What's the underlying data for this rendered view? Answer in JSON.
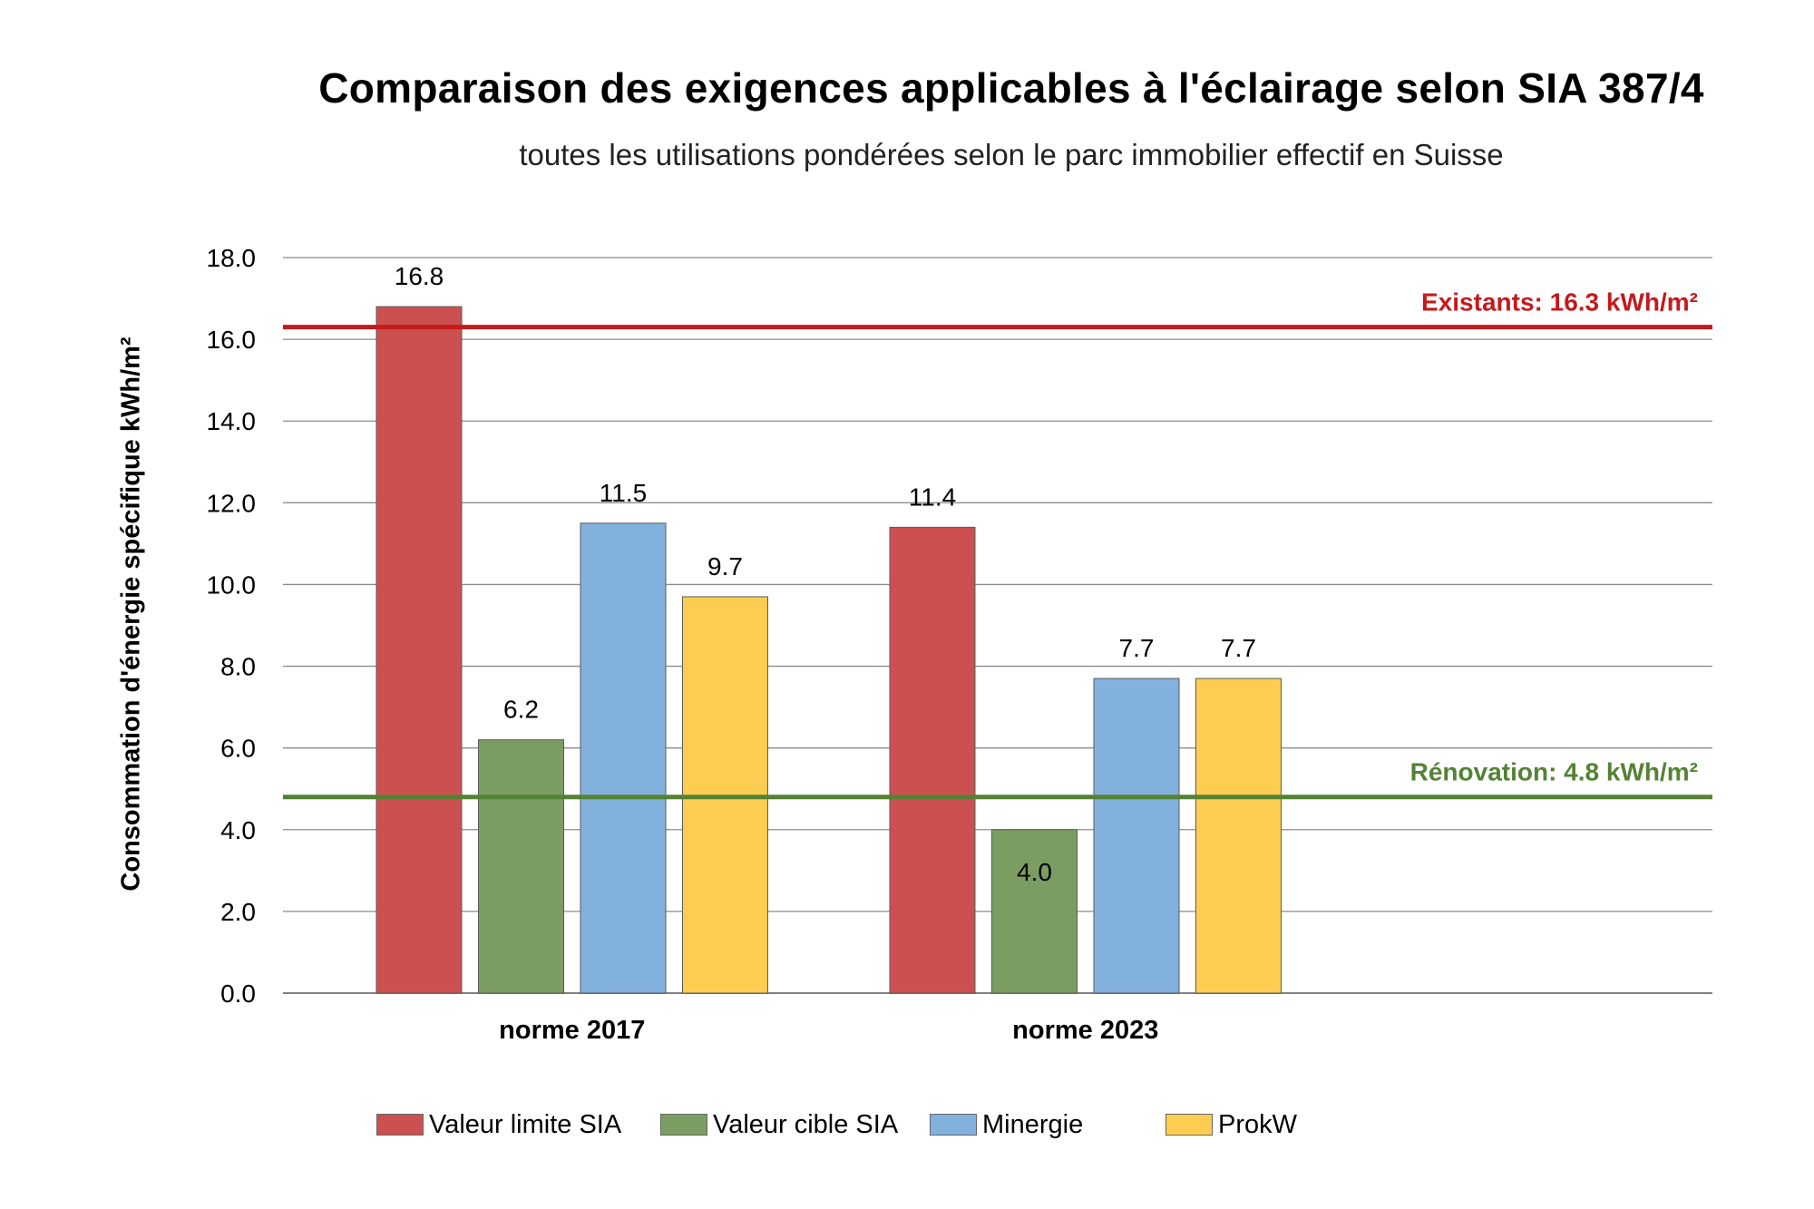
{
  "chart_data": {
    "type": "bar",
    "title": "Comparaison des exigences applicables à l'éclairage selon SIA 387/4",
    "subtitle": "toutes les utilisations pondérées selon le parc immobilier effectif en Suisse",
    "ylabel": "Consommation d'énergie spécifique kWh/m²",
    "xlabel": "",
    "ylim": [
      0,
      18
    ],
    "ytick_step": 2,
    "ytick_labels": [
      "0.0",
      "2.0",
      "4.0",
      "6.0",
      "8.0",
      "10.0",
      "12.0",
      "14.0",
      "16.0",
      "18.0"
    ],
    "grid": true,
    "categories": [
      "norme 2017",
      "norme 2023"
    ],
    "series": [
      {
        "name": "Valeur limite SIA",
        "color": "#cd5050",
        "values": [
          16.8,
          11.4
        ],
        "labels": [
          "16.8",
          "11.4"
        ],
        "label_inside": [
          false,
          false
        ]
      },
      {
        "name": "Valeur cible SIA",
        "color": "#7c9d61",
        "values": [
          6.2,
          4.0
        ],
        "labels": [
          "6.2",
          "4.0"
        ],
        "label_inside": [
          false,
          true
        ]
      },
      {
        "name": "Minergie",
        "color": "#82b1de",
        "values": [
          11.5,
          7.7
        ],
        "labels": [
          "11.5",
          "7.7"
        ],
        "label_inside": [
          false,
          false
        ]
      },
      {
        "name": "ProkW",
        "color": "#fccd50",
        "values": [
          9.7,
          7.7
        ],
        "labels": [
          "9.7",
          "7.7"
        ],
        "label_inside": [
          false,
          false
        ]
      }
    ],
    "reference_lines": [
      {
        "label": "Existants: 16.3 kWh/m²",
        "value": 16.3,
        "color": "#c41a1d"
      },
      {
        "label": "Rénovation: 4.8 kWh/m²",
        "value": 4.8,
        "color": "#548235"
      }
    ],
    "legend_position": "bottom"
  }
}
